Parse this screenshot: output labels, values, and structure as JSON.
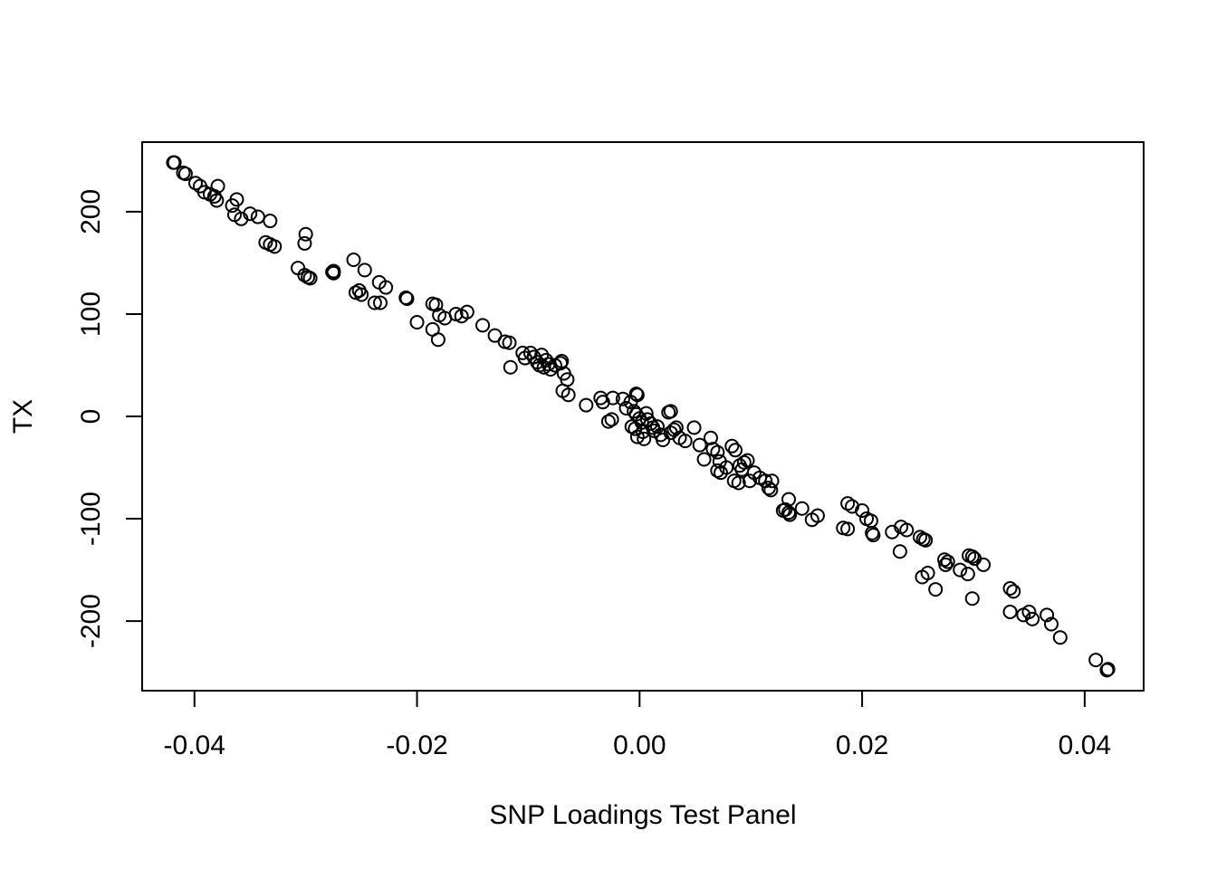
{
  "chart_data": {
    "type": "scatter",
    "title": "",
    "xlabel": "SNP Loadings Test Panel",
    "ylabel": "TX",
    "xlim": [
      -0.0447,
      0.0453
    ],
    "ylim": [
      -268,
      268
    ],
    "grid": false,
    "marker": "open-circle",
    "x_ticks": [
      {
        "value": -0.04,
        "label": "-0.04"
      },
      {
        "value": -0.02,
        "label": "-0.02"
      },
      {
        "value": 0.0,
        "label": "0.00"
      },
      {
        "value": 0.02,
        "label": "0.02"
      },
      {
        "value": 0.04,
        "label": "0.04"
      }
    ],
    "y_ticks": [
      {
        "value": -200,
        "label": "-200"
      },
      {
        "value": -100,
        "label": "-100"
      },
      {
        "value": 0,
        "label": "0"
      },
      {
        "value": 100,
        "label": "100"
      },
      {
        "value": 200,
        "label": "200"
      }
    ],
    "points": [
      [
        -0.0419,
        248
      ],
      [
        -0.0418,
        248
      ],
      [
        -0.041,
        238
      ],
      [
        -0.0408,
        237
      ],
      [
        -0.0399,
        228
      ],
      [
        -0.0395,
        225
      ],
      [
        -0.0391,
        219
      ],
      [
        -0.0386,
        217
      ],
      [
        -0.0382,
        215
      ],
      [
        -0.038,
        211
      ],
      [
        -0.0379,
        225
      ],
      [
        -0.0366,
        206
      ],
      [
        -0.0362,
        212
      ],
      [
        -0.0364,
        197
      ],
      [
        -0.0358,
        193
      ],
      [
        -0.035,
        198
      ],
      [
        -0.0343,
        195
      ],
      [
        -0.0332,
        191
      ],
      [
        -0.0336,
        170
      ],
      [
        -0.0332,
        168
      ],
      [
        -0.0328,
        166
      ],
      [
        -0.03,
        178
      ],
      [
        -0.0301,
        169
      ],
      [
        -0.0307,
        145
      ],
      [
        -0.0301,
        138
      ],
      [
        -0.0298,
        136
      ],
      [
        -0.0296,
        135
      ],
      [
        -0.0275,
        142
      ],
      [
        -0.0275,
        140
      ],
      [
        -0.0276,
        141
      ],
      [
        -0.0257,
        153
      ],
      [
        -0.0255,
        121
      ],
      [
        -0.0252,
        123
      ],
      [
        -0.025,
        119
      ],
      [
        -0.0247,
        143
      ],
      [
        -0.0238,
        111
      ],
      [
        -0.0233,
        111
      ],
      [
        -0.0234,
        131
      ],
      [
        -0.0228,
        126
      ],
      [
        -0.021,
        116
      ],
      [
        -0.0209,
        115
      ],
      [
        -0.02,
        92
      ],
      [
        -0.0186,
        110
      ],
      [
        -0.0183,
        109
      ],
      [
        -0.0186,
        85
      ],
      [
        -0.0181,
        75
      ],
      [
        -0.018,
        99
      ],
      [
        -0.0175,
        96
      ],
      [
        -0.0165,
        100
      ],
      [
        -0.016,
        98
      ],
      [
        -0.0155,
        102
      ],
      [
        -0.0141,
        89
      ],
      [
        -0.013,
        79
      ],
      [
        -0.0121,
        73
      ],
      [
        -0.0117,
        72
      ],
      [
        -0.0116,
        48
      ],
      [
        -0.0105,
        62
      ],
      [
        -0.0103,
        57
      ],
      [
        -0.0098,
        62
      ],
      [
        -0.0095,
        58
      ],
      [
        -0.0092,
        53
      ],
      [
        -0.009,
        50
      ],
      [
        -0.0088,
        60
      ],
      [
        -0.0086,
        48
      ],
      [
        -0.0084,
        55
      ],
      [
        -0.0082,
        51
      ],
      [
        -0.008,
        46
      ],
      [
        -0.0076,
        50
      ],
      [
        -0.0071,
        52
      ],
      [
        -0.007,
        54
      ],
      [
        -0.0068,
        42
      ],
      [
        -0.0065,
        36
      ],
      [
        -0.0069,
        25
      ],
      [
        -0.0064,
        21
      ],
      [
        -0.0048,
        11
      ],
      [
        -0.0035,
        18
      ],
      [
        -0.0033,
        14
      ],
      [
        -0.0024,
        18
      ],
      [
        -0.0028,
        -5
      ],
      [
        -0.0025,
        -3
      ],
      [
        -0.0015,
        17
      ],
      [
        -0.0012,
        8
      ],
      [
        -0.0008,
        14
      ],
      [
        -0.0003,
        22
      ],
      [
        -0.0002,
        21
      ],
      [
        -0.0005,
        5
      ],
      [
        -0.0003,
        2
      ],
      [
        0.0,
        -2
      ],
      [
        0.0002,
        -6
      ],
      [
        -0.0007,
        -10
      ],
      [
        -0.0004,
        -12
      ],
      [
        0.0003,
        -15
      ],
      [
        -0.0002,
        -20
      ],
      [
        0.0004,
        -22
      ],
      [
        0.0006,
        3
      ],
      [
        0.0007,
        -3
      ],
      [
        0.001,
        -7
      ],
      [
        0.0012,
        -11
      ],
      [
        0.0013,
        -14
      ],
      [
        0.0016,
        -10
      ],
      [
        0.0019,
        -18
      ],
      [
        0.0021,
        -23
      ],
      [
        0.0026,
        4
      ],
      [
        0.0028,
        5
      ],
      [
        0.0028,
        -16
      ],
      [
        0.0031,
        -13
      ],
      [
        0.0033,
        -11
      ],
      [
        0.0036,
        -21
      ],
      [
        0.0041,
        -24
      ],
      [
        0.0049,
        -11
      ],
      [
        0.0054,
        -28
      ],
      [
        0.0058,
        -42
      ],
      [
        0.0064,
        -21
      ],
      [
        0.0066,
        -32
      ],
      [
        0.007,
        -35
      ],
      [
        0.0072,
        -44
      ],
      [
        0.007,
        -53
      ],
      [
        0.0073,
        -55
      ],
      [
        0.0078,
        -50
      ],
      [
        0.0083,
        -29
      ],
      [
        0.0086,
        -33
      ],
      [
        0.0085,
        -63
      ],
      [
        0.0089,
        -65
      ],
      [
        0.009,
        -48
      ],
      [
        0.0092,
        -52
      ],
      [
        0.0094,
        -45
      ],
      [
        0.0097,
        -43
      ],
      [
        0.0099,
        -63
      ],
      [
        0.0103,
        -55
      ],
      [
        0.0108,
        -60
      ],
      [
        0.0113,
        -63
      ],
      [
        0.0116,
        -70
      ],
      [
        0.0118,
        -72
      ],
      [
        0.0119,
        -63
      ],
      [
        0.0129,
        -92
      ],
      [
        0.0131,
        -91
      ],
      [
        0.0134,
        -94
      ],
      [
        0.0135,
        -96
      ],
      [
        0.0134,
        -81
      ],
      [
        0.0146,
        -90
      ],
      [
        0.0155,
        -101
      ],
      [
        0.016,
        -97
      ],
      [
        0.0183,
        -109
      ],
      [
        0.0187,
        -110
      ],
      [
        0.0187,
        -85
      ],
      [
        0.0191,
        -88
      ],
      [
        0.02,
        -92
      ],
      [
        0.0204,
        -100
      ],
      [
        0.0208,
        -102
      ],
      [
        0.0209,
        -114
      ],
      [
        0.021,
        -116
      ],
      [
        0.0227,
        -113
      ],
      [
        0.0235,
        -108
      ],
      [
        0.024,
        -111
      ],
      [
        0.0234,
        -132
      ],
      [
        0.0252,
        -118
      ],
      [
        0.0255,
        -120
      ],
      [
        0.0257,
        -121
      ],
      [
        0.0254,
        -157
      ],
      [
        0.0259,
        -153
      ],
      [
        0.0266,
        -169
      ],
      [
        0.0274,
        -140
      ],
      [
        0.0275,
        -145
      ],
      [
        0.0277,
        -142
      ],
      [
        0.0288,
        -150
      ],
      [
        0.0295,
        -154
      ],
      [
        0.0296,
        -136
      ],
      [
        0.0299,
        -137
      ],
      [
        0.0301,
        -139
      ],
      [
        0.0309,
        -145
      ],
      [
        0.0299,
        -178
      ],
      [
        0.0333,
        -168
      ],
      [
        0.0336,
        -171
      ],
      [
        0.0333,
        -191
      ],
      [
        0.0345,
        -194
      ],
      [
        0.035,
        -191
      ],
      [
        0.0353,
        -198
      ],
      [
        0.0366,
        -194
      ],
      [
        0.037,
        -203
      ],
      [
        0.0378,
        -216
      ],
      [
        0.041,
        -238
      ],
      [
        0.042,
        -248
      ],
      [
        0.0421,
        -247
      ]
    ]
  }
}
